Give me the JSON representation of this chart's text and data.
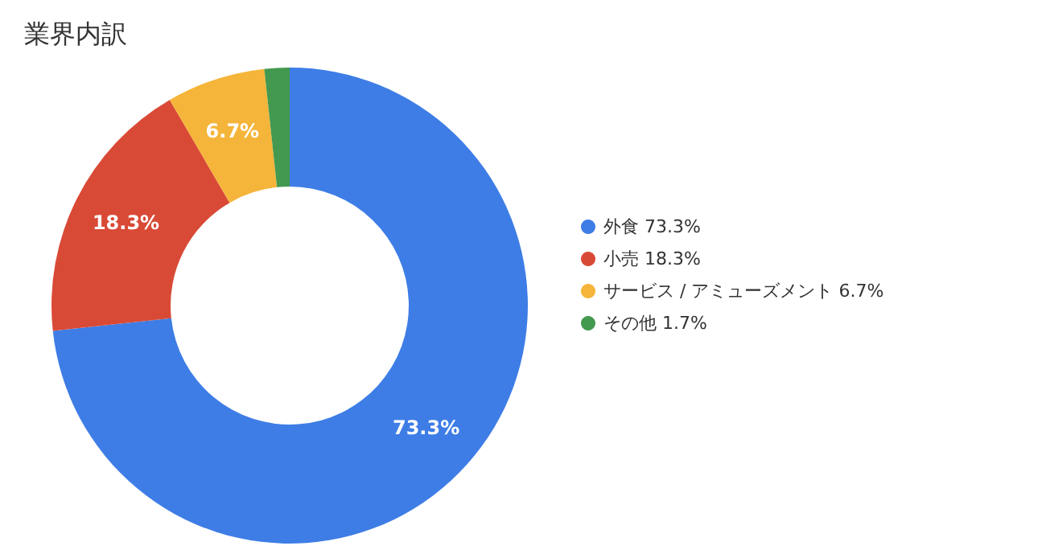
{
  "chart_data": {
    "type": "donut",
    "title": "業界内訳",
    "categories": [
      "外食 73.3%",
      "小売 18.3%",
      "サービス / アミューズメント 6.7%",
      "その他 1.7%"
    ],
    "values": [
      73.3,
      18.3,
      6.7,
      1.7
    ],
    "colors": [
      "#3e7de6",
      "#d94a36",
      "#f5b53a",
      "#43994f"
    ],
    "value_labels": [
      "73.3%",
      "18.3%",
      "6.7%",
      null
    ],
    "legend": "right"
  }
}
